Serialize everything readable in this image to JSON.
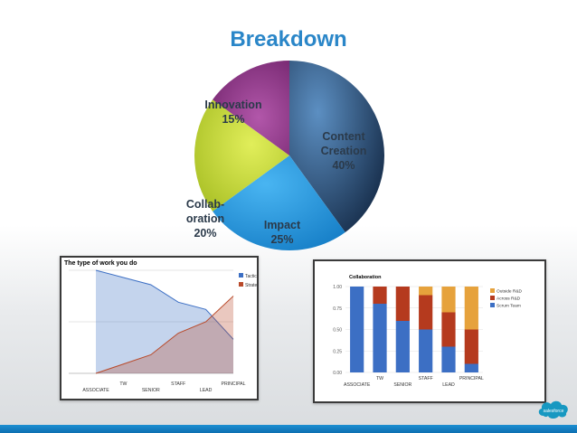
{
  "slide": {
    "title": "Breakdown",
    "logo_text": "salesforce"
  },
  "chart_data": [
    {
      "type": "pie",
      "title": "Breakdown",
      "slices": [
        {
          "label": "Content\nCreation\n40%",
          "name": "Content Creation",
          "value": 40,
          "color": "#1f4f86"
        },
        {
          "label": "Impact\n25%",
          "name": "Impact",
          "value": 25,
          "color": "#2a9ae0"
        },
        {
          "label": "Collab-\noration\n20%",
          "name": "Collaboration",
          "value": 20,
          "color": "#c3d62e"
        },
        {
          "label": "Innovation\n15%",
          "name": "Innovation",
          "value": 15,
          "color": "#8a2f86"
        }
      ]
    },
    {
      "type": "area",
      "title": "The type of work you do",
      "categories": [
        "ASSOCIATE",
        "TW",
        "SENIOR",
        "STAFF",
        "LEAD",
        "PRINCIPAL"
      ],
      "series": [
        {
          "name": "Tactical",
          "color": "#3c6fc4",
          "values": [
            1.0,
            0.93,
            0.86,
            0.69,
            0.62,
            0.33
          ]
        },
        {
          "name": "Strategic",
          "color": "#b94a2a",
          "values": [
            0.0,
            0.09,
            0.18,
            0.39,
            0.5,
            0.75
          ]
        }
      ],
      "ylim": [
        0,
        1
      ],
      "legend": "right"
    },
    {
      "type": "bar",
      "stacked": true,
      "title": "Collaboration",
      "categories": [
        "ASSOCIATE",
        "TW",
        "SENIOR",
        "STAFF",
        "LEAD",
        "PRINCIPAL"
      ],
      "yticks": [
        "0.00",
        "0.25",
        "0.50",
        "0.75",
        "1.00"
      ],
      "ylim": [
        0,
        1
      ],
      "series": [
        {
          "name": "Scrum Team",
          "color": "#3c6fc4",
          "values": [
            1.0,
            0.8,
            0.6,
            0.5,
            0.3,
            0.1
          ]
        },
        {
          "name": "Across R&D",
          "color": "#b53a1e",
          "values": [
            0.0,
            0.2,
            0.4,
            0.4,
            0.4,
            0.4
          ]
        },
        {
          "name": "Outside R&D",
          "color": "#e6a23c",
          "values": [
            0.0,
            0.0,
            0.0,
            0.1,
            0.3,
            0.5
          ]
        }
      ],
      "legend": "right"
    }
  ]
}
